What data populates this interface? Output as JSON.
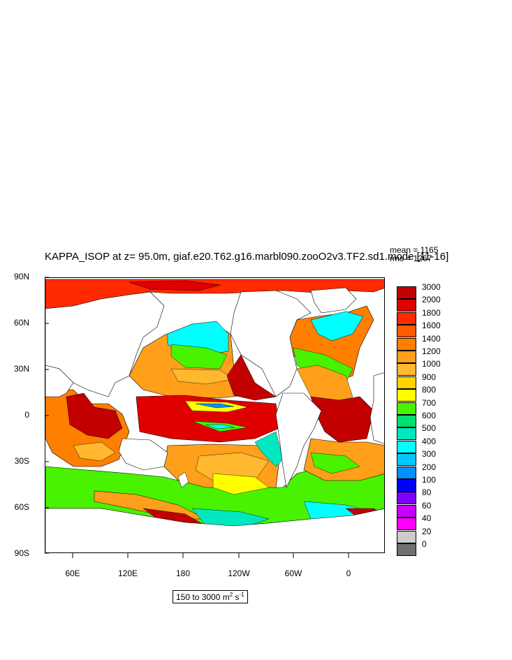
{
  "header": {
    "title": "KAPPA_ISOP at z=  95.0m, giaf.e20.T62.g16.marbl090.zooO2v3.TF2.sd1.mode [11-16]",
    "mean": "mean = 1165",
    "rms": "rms = 1267"
  },
  "axes": {
    "lat_labels": [
      "90N",
      "60N",
      "30N",
      "0",
      "30S",
      "60S",
      "90S"
    ],
    "lon_labels": [
      "60E",
      "120E",
      "180",
      "120W",
      "60W",
      "0"
    ]
  },
  "colorbar": {
    "levels": [
      "3000",
      "2000",
      "1800",
      "1600",
      "1400",
      "1200",
      "1000",
      "900",
      "800",
      "700",
      "600",
      "500",
      "400",
      "300",
      "200",
      "100",
      "80",
      "60",
      "40",
      "20",
      "0"
    ],
    "colors": [
      "#c20000",
      "#e00000",
      "#ff2a00",
      "#ff5a00",
      "#ff7f00",
      "#ff9f1a",
      "#ffb830",
      "#ffd400",
      "#ffff00",
      "#48f200",
      "#00e070",
      "#00e8c0",
      "#00ffff",
      "#00c8ff",
      "#0090ff",
      "#0000ff",
      "#8000ff",
      "#c800ff",
      "#ff00ff",
      "#cccccc",
      "#707070"
    ]
  },
  "units": {
    "range_prefix": "150 to 3000 m",
    "sup1": "2",
    "mid": " s",
    "sup2": "-1"
  },
  "map": {
    "projection": "cylindrical equidistant, centered 150E",
    "regions": [
      {
        "name": "arctic-ocean",
        "color": "#ff2a00"
      },
      {
        "name": "tropical-pacific",
        "color": "#e00000"
      },
      {
        "name": "north-pacific",
        "color": "#ff9f1a"
      },
      {
        "name": "subpolar-north-pacific",
        "color": "#00ffff"
      },
      {
        "name": "indian-ocean",
        "color": "#c20000"
      },
      {
        "name": "southern-ocean",
        "color": "#48f200"
      },
      {
        "name": "tropical-atlantic",
        "color": "#c20000"
      },
      {
        "name": "north-atlantic",
        "color": "#ff7f00"
      },
      {
        "name": "labrador-sea",
        "color": "#00ffff"
      },
      {
        "name": "south-atlantic",
        "color": "#ff9f1a"
      }
    ]
  }
}
